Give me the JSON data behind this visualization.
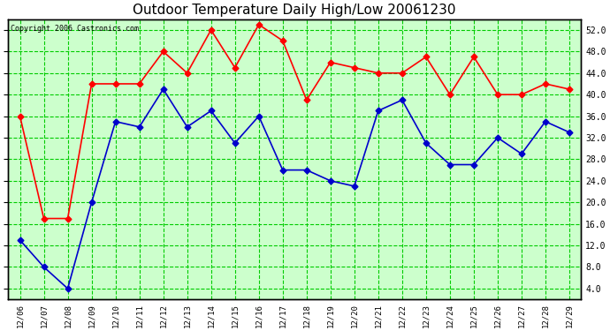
{
  "title": "Outdoor Temperature Daily High/Low 20061230",
  "copyright": "Copyright 2006 Castronics.com",
  "dates": [
    "12/06",
    "12/07",
    "12/08",
    "12/09",
    "12/10",
    "12/11",
    "12/12",
    "12/13",
    "12/14",
    "12/15",
    "12/16",
    "12/17",
    "12/18",
    "12/19",
    "12/20",
    "12/21",
    "12/22",
    "12/23",
    "12/24",
    "12/25",
    "12/26",
    "12/27",
    "12/28",
    "12/29"
  ],
  "high": [
    36,
    17,
    17,
    42,
    42,
    42,
    48,
    44,
    52,
    45,
    53,
    50,
    39,
    46,
    45,
    44,
    44,
    47,
    40,
    47,
    40,
    40,
    42,
    41
  ],
  "low": [
    13,
    8,
    4,
    20,
    35,
    34,
    41,
    34,
    37,
    31,
    36,
    26,
    26,
    24,
    23,
    37,
    39,
    31,
    27,
    27,
    32,
    29,
    35,
    33
  ],
  "high_color": "#ff0000",
  "low_color": "#0000cc",
  "marker_size": 3.5,
  "line_width": 1.2,
  "fig_bg_color": "#ffffff",
  "plot_bg_color": "#ccffcc",
  "grid_color": "#00cc00",
  "border_color": "#000000",
  "ylim": [
    2.0,
    54.0
  ],
  "yticks": [
    4.0,
    8.0,
    12.0,
    16.0,
    20.0,
    24.0,
    28.0,
    32.0,
    36.0,
    40.0,
    44.0,
    48.0,
    52.0
  ],
  "title_fontsize": 11,
  "copyright_fontsize": 6,
  "tick_fontsize": 7,
  "xtick_fontsize": 6.5
}
